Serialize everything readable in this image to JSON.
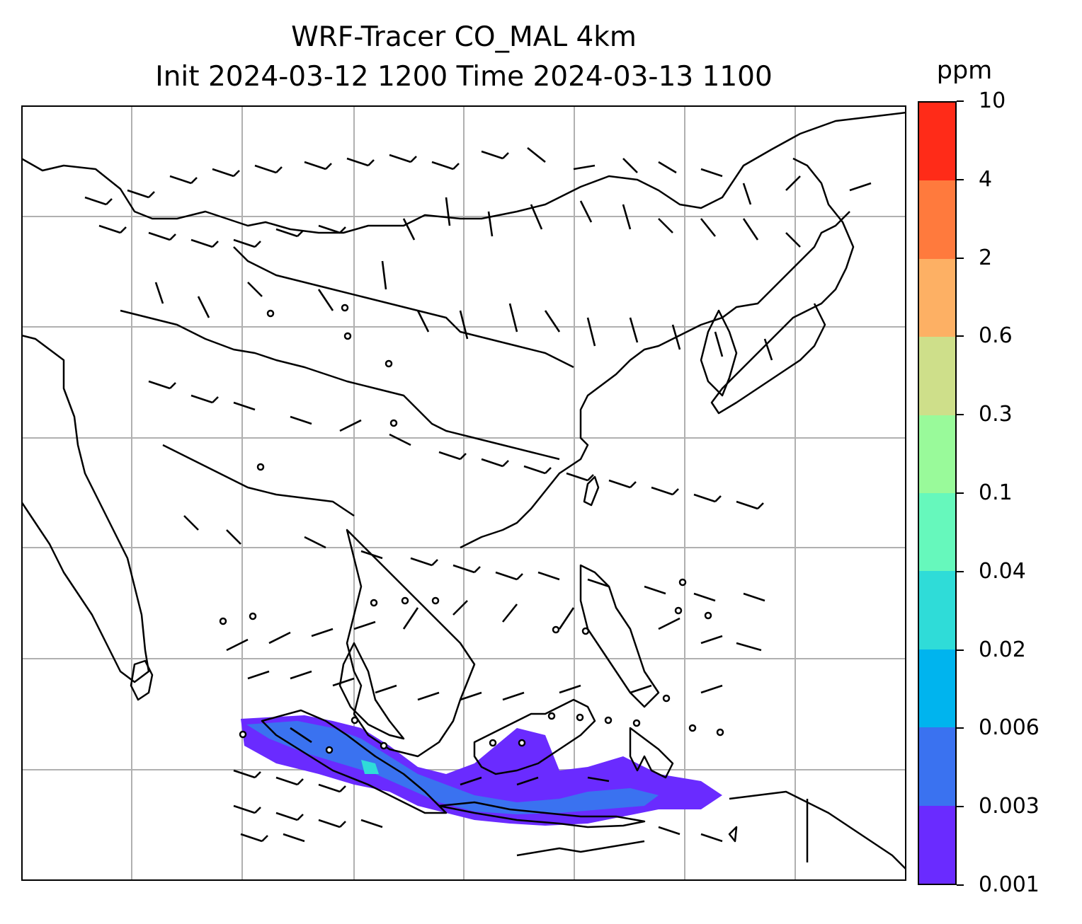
{
  "title": {
    "line1": "WRF-Tracer CO_MAL 4km",
    "line2": "Init 2024-03-12 1200 Time 2024-03-13 1100"
  },
  "colorbar": {
    "unit": "ppm",
    "levels": [
      "0.001",
      "0.003",
      "0.006",
      "0.02",
      "0.04",
      "0.1",
      "0.3",
      "0.6",
      "2",
      "4",
      "10"
    ],
    "colors": [
      "#6a2bff",
      "#3a72f0",
      "#00b4ee",
      "#2fdcd8",
      "#66f8bc",
      "#99fa9a",
      "#cedf8a",
      "#fdb064",
      "#ff7a3d",
      "#ff2b18"
    ]
  },
  "map": {
    "projection": "Lambert-style regional grid",
    "gridlines": true,
    "field": "CO_MAL tracer concentration with wind barbs",
    "plume_color_dominant": "#6a2bff",
    "plume_color_secondary": "#3a72f0"
  }
}
